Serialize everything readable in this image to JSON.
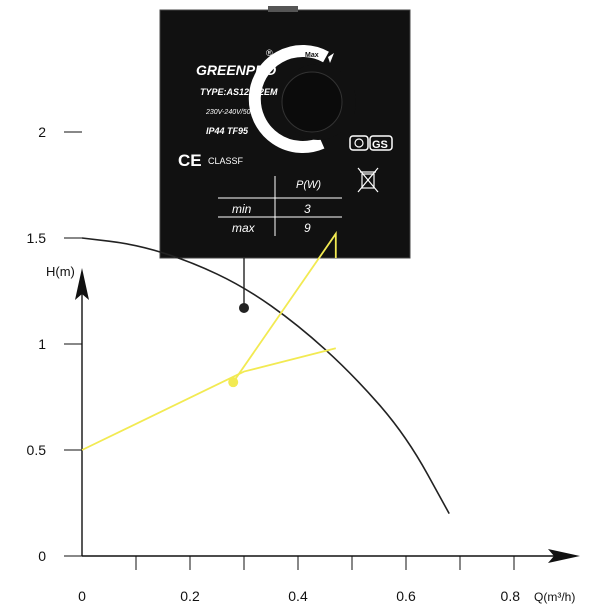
{
  "label": {
    "brand": "GREENPRO",
    "registered_mark": "®",
    "model": "TYPE:AS12/1.2EM",
    "voltage": "230V-240V/50Hz",
    "protection": "IP44 TF95",
    "ce_mark": "CE",
    "class": "CLASSF",
    "dial_max": "Max",
    "dial_low": "min",
    "dial_mid": "max",
    "power_header": "P(W)",
    "power_table": [
      {
        "mode": "min",
        "watts": "3"
      },
      {
        "mode": "max",
        "watts": "9"
      }
    ],
    "cert_mark": "GS",
    "colors": {
      "background": "#111111",
      "foreground": "#ffffff"
    }
  },
  "chart_data": {
    "type": "line",
    "ylabel": "H(m)",
    "xlabel": "Q(m³/h)",
    "x_ticks": [
      "0",
      "0.2",
      "0.4",
      "0.6",
      "0.8"
    ],
    "y_ticks": [
      "0",
      "0.5",
      "1",
      "1.5",
      "2"
    ],
    "xlim": [
      0,
      0.8
    ],
    "ylim": [
      0,
      2.5
    ],
    "series": [
      {
        "color": "#222222",
        "x": [
          0,
          0.1,
          0.2,
          0.3,
          0.4,
          0.5,
          0.6,
          0.68
        ],
        "y": [
          1.5,
          1.47,
          1.39,
          1.27,
          1.09,
          0.86,
          0.57,
          0.2
        ]
      },
      {
        "color": "#f2ea52",
        "x": [
          0,
          0.3,
          0.47
        ],
        "y": [
          0.5,
          0.87,
          0.98
        ]
      },
      {
        "color": "#f2ea52",
        "x": [
          0.28,
          0.47,
          0.47
        ],
        "y": [
          0.82,
          1.52,
          2.7
        ]
      }
    ],
    "points": [
      {
        "x": 0.3,
        "y": 1.17,
        "color": "#222222"
      },
      {
        "x": 0.28,
        "y": 0.82,
        "color": "#f2ea52"
      }
    ],
    "drop_lines": [
      {
        "x": 0.3,
        "from_y": 1.17,
        "to_y": 2.7,
        "color": "#222222"
      }
    ]
  }
}
